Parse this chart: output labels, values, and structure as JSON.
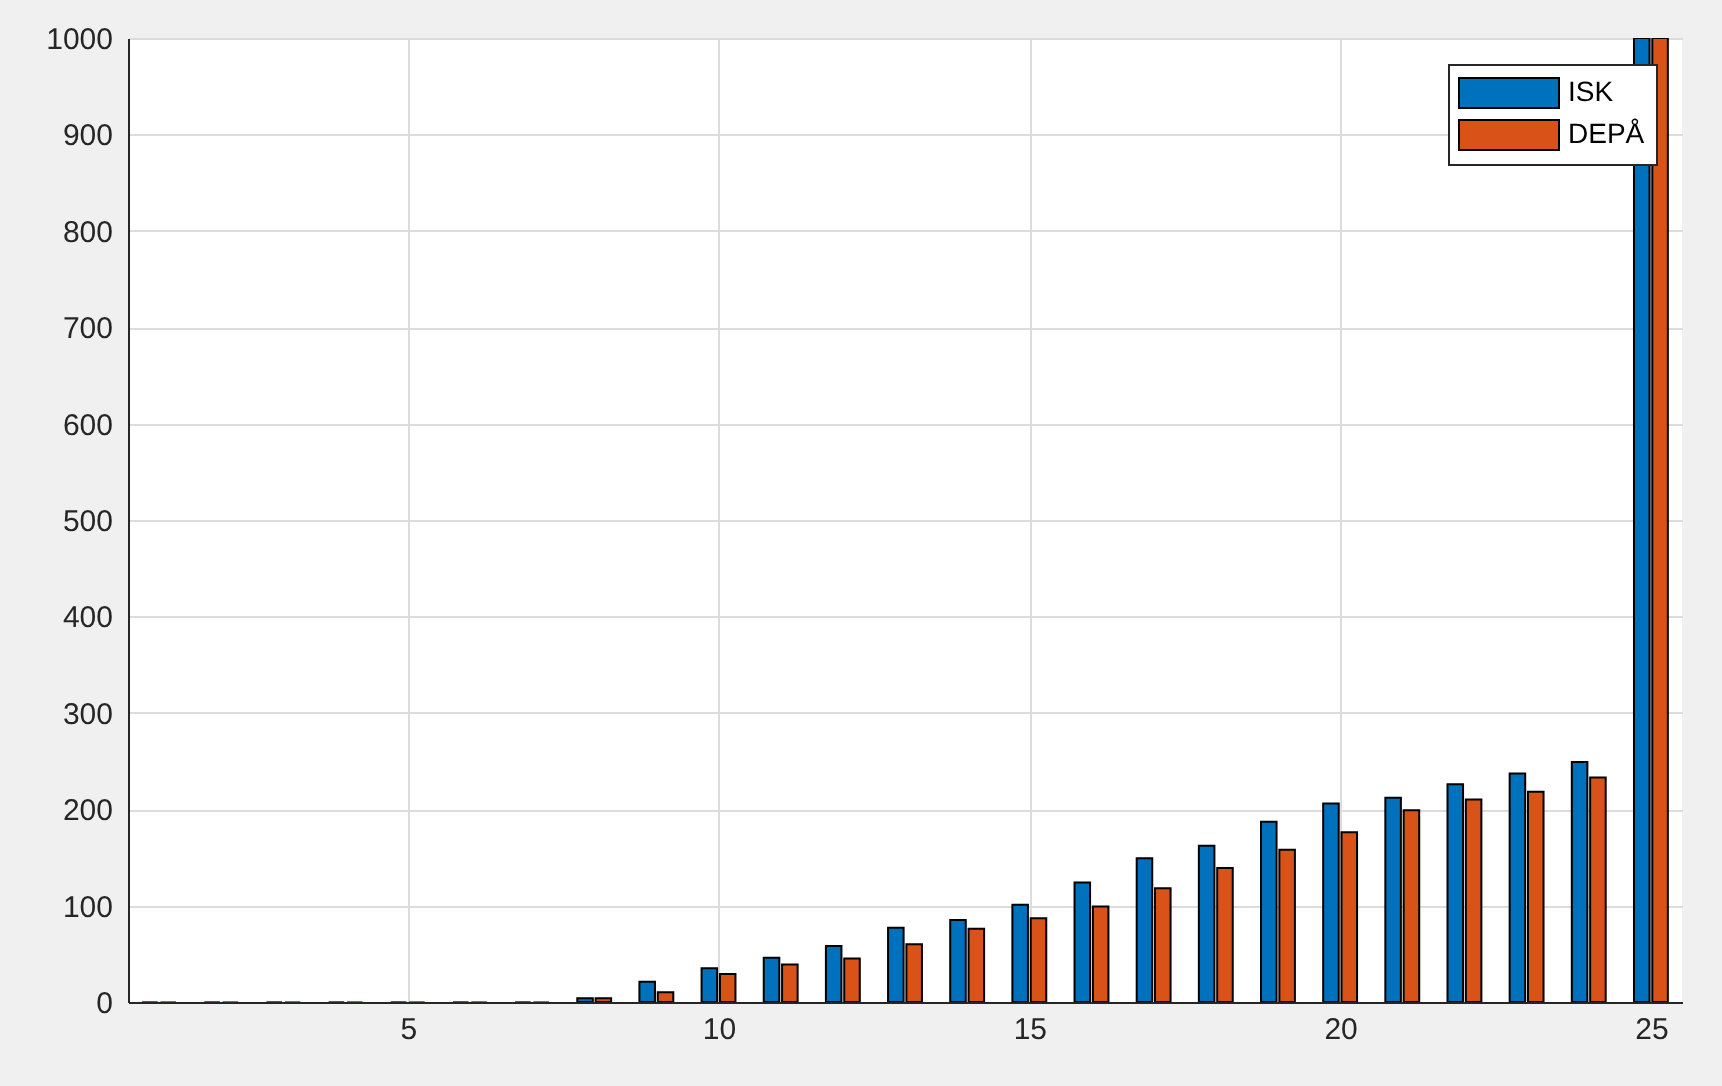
{
  "chart_data": {
    "type": "bar",
    "x": [
      1,
      2,
      3,
      4,
      5,
      6,
      7,
      8,
      9,
      10,
      11,
      12,
      13,
      14,
      15,
      16,
      17,
      18,
      19,
      20,
      21,
      22,
      23,
      24,
      25
    ],
    "series": [
      {
        "name": "ISK",
        "color": "#0072bd",
        "values": [
          0,
          0,
          0,
          0,
          0,
          0,
          0,
          4,
          21,
          35,
          46,
          58,
          77,
          85,
          101,
          124,
          149,
          162,
          187,
          206,
          212,
          226,
          237,
          249,
          1000
        ]
      },
      {
        "name": "DEPÅ",
        "color": "#d95319",
        "values": [
          0,
          0,
          0,
          0,
          0,
          0,
          0,
          4,
          10,
          29,
          39,
          45,
          60,
          76,
          87,
          99,
          118,
          139,
          158,
          176,
          199,
          210,
          218,
          233,
          1000
        ]
      }
    ],
    "xlim": [
      0.5,
      25.5
    ],
    "xticks": [
      5,
      10,
      15,
      20,
      25
    ],
    "ylim": [
      0,
      1000
    ],
    "yticks": [
      0,
      100,
      200,
      300,
      400,
      500,
      600,
      700,
      800,
      900,
      1000
    ],
    "grid": true,
    "legend": "top right"
  }
}
